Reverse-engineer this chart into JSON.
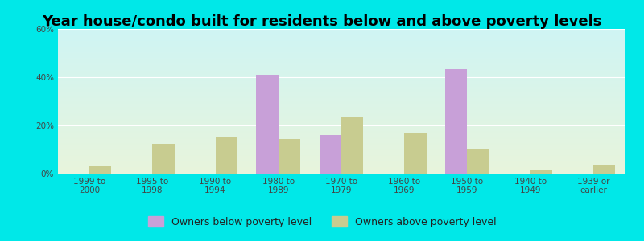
{
  "title": "Year house/condo built for residents below and above poverty levels",
  "categories": [
    "1999 to\n2000",
    "1995 to\n1998",
    "1990 to\n1994",
    "1980 to\n1989",
    "1970 to\n1979",
    "1960 to\n1969",
    "1950 to\n1959",
    "1940 to\n1949",
    "1939 or\nearlier"
  ],
  "below_poverty": [
    0.0,
    0.0,
    0.0,
    41.0,
    16.0,
    0.0,
    43.5,
    0.0,
    0.0
  ],
  "above_poverty": [
    3.0,
    12.5,
    15.0,
    14.5,
    23.5,
    17.0,
    10.5,
    1.5,
    3.5
  ],
  "below_color": "#c8a0d8",
  "above_color": "#c8cc90",
  "ylim": [
    0,
    60
  ],
  "yticks": [
    0,
    20,
    40,
    60
  ],
  "ytick_labels": [
    "0%",
    "20%",
    "40%",
    "60%"
  ],
  "legend_below": "Owners below poverty level",
  "legend_above": "Owners above poverty level",
  "bg_gradient_top": "#cff4f4",
  "bg_gradient_bottom": "#e8f5dc",
  "outer_bg": "#00e8e8",
  "bar_width": 0.35,
  "title_fontsize": 13,
  "tick_fontsize": 7.5,
  "legend_fontsize": 9.0
}
